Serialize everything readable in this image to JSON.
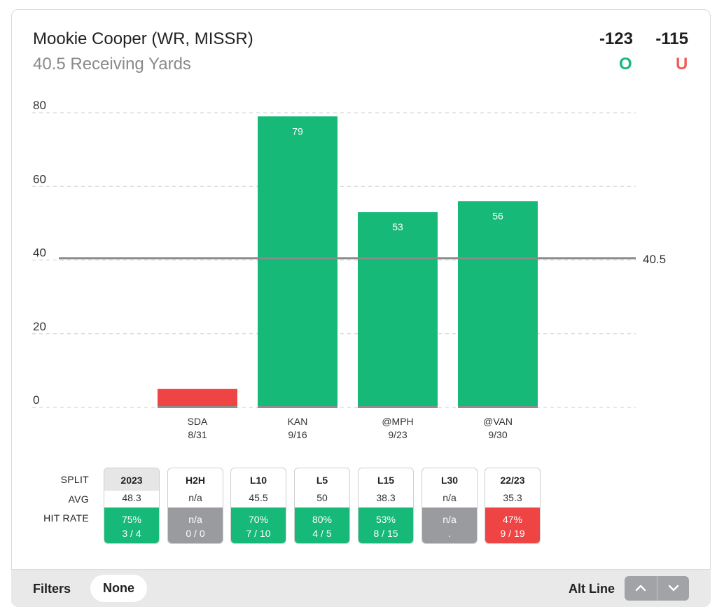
{
  "header": {
    "player": "Mookie Cooper (WR, MISSR)",
    "prop": "40.5 Receiving Yards",
    "odds_over": "-123",
    "odds_under": "-115",
    "over_label": "O",
    "under_label": "U",
    "over_color": "#17b978",
    "under_color": "#ef5d5d"
  },
  "chart_data": {
    "type": "bar",
    "categories": [
      "SDA",
      "KAN",
      "@MPH",
      "@VAN"
    ],
    "dates": [
      "8/31",
      "9/16",
      "9/23",
      "9/30"
    ],
    "values": [
      5,
      79,
      53,
      56
    ],
    "value_labels": [
      "",
      "79",
      "53",
      "56"
    ],
    "ylim": [
      0,
      80
    ],
    "yticks": [
      "0",
      "20",
      "40",
      "60",
      "80"
    ],
    "line_value": 40.5,
    "line_label": "40.5",
    "grid": true,
    "colors": {
      "over": "#17b978",
      "under": "#ef4444",
      "line": "#8a8a8a"
    }
  },
  "splits": {
    "row_labels": {
      "split": "SPLIT",
      "avg": "AVG",
      "hit_rate": "HIT RATE"
    },
    "items": [
      {
        "name": "2023",
        "avg": "48.3",
        "rate": "75%",
        "record": "3 / 4",
        "status": "green",
        "active": true
      },
      {
        "name": "H2H",
        "avg": "n/a",
        "rate": "n/a",
        "record": "0 / 0",
        "status": "gray",
        "active": false
      },
      {
        "name": "L10",
        "avg": "45.5",
        "rate": "70%",
        "record": "7 / 10",
        "status": "green",
        "active": false
      },
      {
        "name": "L5",
        "avg": "50",
        "rate": "80%",
        "record": "4 / 5",
        "status": "green",
        "active": false
      },
      {
        "name": "L15",
        "avg": "38.3",
        "rate": "53%",
        "record": "8 / 15",
        "status": "green",
        "active": false
      },
      {
        "name": "L30",
        "avg": "n/a",
        "rate": "n/a",
        "record": ".",
        "status": "gray",
        "active": false
      },
      {
        "name": "22/23",
        "avg": "35.3",
        "rate": "47%",
        "record": "9 / 19",
        "status": "red",
        "active": false
      }
    ]
  },
  "footer": {
    "filters_label": "Filters",
    "filter_value": "None",
    "alt_line_label": "Alt Line",
    "up_icon": "chevron-up-icon",
    "down_icon": "chevron-down-icon"
  }
}
